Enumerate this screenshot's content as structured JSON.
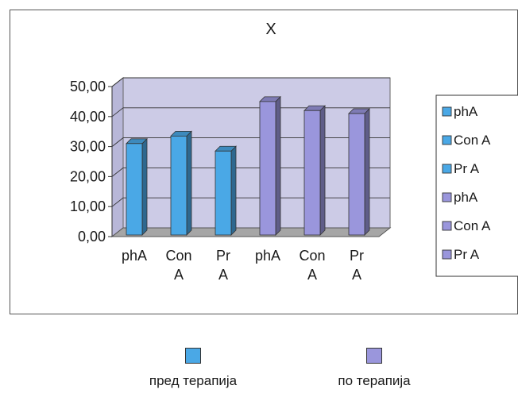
{
  "chart_data": {
    "type": "bar",
    "title": "X",
    "xlabel": "",
    "ylabel": "",
    "ylim": [
      0,
      50
    ],
    "yticks": [
      "0,00",
      "10,00",
      "20,00",
      "30,00",
      "40,00",
      "50,00"
    ],
    "categories": [
      "phA",
      "Con A",
      "Pr A",
      "phA",
      "Con A",
      "Pr A"
    ],
    "values": [
      31,
      33.5,
      28.5,
      45,
      42,
      41
    ],
    "groups": [
      {
        "name": "пред терапија",
        "color": "#4aa8e6",
        "categories": [
          "phA",
          "Con A",
          "Pr A"
        ],
        "values": [
          31,
          33.5,
          28.5
        ]
      },
      {
        "name": "по терапија",
        "color": "#9a96dc",
        "categories": [
          "phA",
          "Con A",
          "Pr A"
        ],
        "values": [
          45,
          42,
          41
        ]
      }
    ],
    "legend": {
      "placement": "right",
      "entries": [
        {
          "label": "phA",
          "color": "#4aa8e6"
        },
        {
          "label": "Con A",
          "color": "#4aa8e6"
        },
        {
          "label": "Pr A",
          "color": "#4aa8e6"
        },
        {
          "label": "phA",
          "color": "#9a96dc"
        },
        {
          "label": "Con A",
          "color": "#9a96dc"
        },
        {
          "label": "Pr A",
          "color": "#9a96dc"
        }
      ]
    },
    "grid": true,
    "style": "3d-columns"
  },
  "bottom_legend": [
    {
      "label": "пред терапија",
      "color": "#4aa8e6"
    },
    {
      "label": "по терапија",
      "color": "#9a96dc"
    }
  ]
}
